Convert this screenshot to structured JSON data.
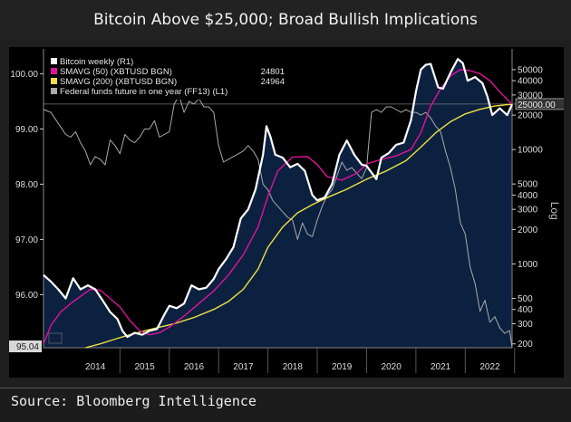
{
  "header": {
    "title": "Bitcoin Above $25,000; Broad Bullish Implications"
  },
  "footer": {
    "source": "Source: Bloomberg Intelligence"
  },
  "chart_data": {
    "type": "line",
    "title": "Bitcoin Above $25,000; Broad Bullish Implications",
    "xlabel": "",
    "x_ticks": [
      "2014",
      "2015",
      "2016",
      "2017",
      "2018",
      "2019",
      "2020",
      "2021",
      "2022"
    ],
    "xlim": [
      2013.45,
      2022.95
    ],
    "left_axis": {
      "label": "",
      "ticks": [
        "100.00",
        "99.00",
        "98.00",
        "97.00",
        "96.00"
      ],
      "tick_values": [
        100,
        99,
        98,
        97,
        96
      ],
      "ylim": [
        95.04,
        100.35
      ],
      "last_value_label": "95.04"
    },
    "right_axis": {
      "label": "Log",
      "scale": "log",
      "ticks": [
        "50000",
        "40000",
        "30000",
        "20000",
        "10000",
        "5000",
        "4000",
        "3000",
        "2000",
        "1000",
        "500",
        "400",
        "300",
        "200"
      ],
      "tick_values": [
        50000,
        40000,
        30000,
        20000,
        10000,
        5000,
        4000,
        3000,
        2000,
        1000,
        500,
        400,
        300,
        200
      ],
      "ylim": [
        185,
        68000
      ],
      "reference_line": 25000,
      "reference_label": "25000.00"
    },
    "legend": {
      "position": "top-left",
      "entries": [
        {
          "label": "Bitcoin weekly (R1)",
          "color": "#ffffff",
          "value": ""
        },
        {
          "label": "SMAVG (50) (XBTUSD BGN)",
          "color": "#e0139a",
          "value": "24801"
        },
        {
          "label": "SMAVG (200) (XBTUSD BGN)",
          "color": "#f0e040",
          "value": "24964"
        },
        {
          "label": "Federal funds future in one year (FF13) (L1)",
          "color": "#aaaaaa",
          "value": ""
        }
      ]
    },
    "series": [
      {
        "name": "Bitcoin weekly (R1)",
        "axis": "right",
        "color": "#ffffff",
        "x": [
          2013.45,
          2013.6,
          2013.75,
          2013.9,
          2014.05,
          2014.2,
          2014.35,
          2014.5,
          2014.65,
          2014.8,
          2014.95,
          2015.05,
          2015.15,
          2015.3,
          2015.45,
          2015.6,
          2015.75,
          2015.9,
          2016.0,
          2016.15,
          2016.3,
          2016.45,
          2016.6,
          2016.75,
          2016.9,
          2017.0,
          2017.15,
          2017.3,
          2017.45,
          2017.6,
          2017.75,
          2017.9,
          2017.97,
          2018.05,
          2018.15,
          2018.3,
          2018.45,
          2018.6,
          2018.75,
          2018.9,
          2019.0,
          2019.15,
          2019.3,
          2019.45,
          2019.6,
          2019.75,
          2019.9,
          2020.0,
          2020.2,
          2020.3,
          2020.45,
          2020.6,
          2020.75,
          2020.9,
          2021.0,
          2021.1,
          2021.2,
          2021.3,
          2021.45,
          2021.55,
          2021.7,
          2021.85,
          2021.95,
          2022.05,
          2022.2,
          2022.35,
          2022.45,
          2022.55,
          2022.7,
          2022.85,
          2022.95
        ],
        "values": [
          800,
          700,
          600,
          500,
          750,
          600,
          650,
          600,
          480,
          380,
          330,
          260,
          230,
          250,
          240,
          260,
          270,
          360,
          430,
          410,
          450,
          650,
          600,
          620,
          740,
          900,
          1100,
          1400,
          2500,
          3000,
          4500,
          9000,
          16000,
          13000,
          9000,
          8500,
          7000,
          7500,
          6500,
          4000,
          3600,
          3800,
          5000,
          9000,
          12000,
          9000,
          7400,
          7200,
          5500,
          8500,
          9300,
          11000,
          11500,
          18000,
          32000,
          50000,
          55000,
          56000,
          35000,
          34000,
          47000,
          62000,
          57000,
          40000,
          43000,
          38000,
          29000,
          20000,
          23000,
          20000,
          24800
        ]
      },
      {
        "name": "SMAVG (50) (XBTUSD BGN)",
        "axis": "right",
        "color": "#e0139a",
        "x": [
          2013.45,
          2013.6,
          2013.8,
          2014.0,
          2014.2,
          2014.4,
          2014.6,
          2014.8,
          2015.0,
          2015.2,
          2015.4,
          2015.6,
          2015.8,
          2016.0,
          2016.3,
          2016.6,
          2016.9,
          2017.2,
          2017.5,
          2017.8,
          2018.0,
          2018.2,
          2018.5,
          2018.8,
          2019.0,
          2019.2,
          2019.5,
          2019.8,
          2020.0,
          2020.3,
          2020.6,
          2020.9,
          2021.1,
          2021.3,
          2021.5,
          2021.7,
          2021.9,
          2022.1,
          2022.3,
          2022.5,
          2022.7,
          2022.95
        ],
        "values": [
          200,
          290,
          380,
          450,
          520,
          600,
          590,
          500,
          420,
          320,
          260,
          240,
          250,
          280,
          350,
          450,
          580,
          800,
          1200,
          2100,
          3900,
          6500,
          8600,
          8700,
          7400,
          5800,
          5400,
          6200,
          7500,
          8200,
          8800,
          10000,
          14000,
          24000,
          34000,
          44000,
          50000,
          49000,
          46000,
          40000,
          32000,
          24800
        ]
      },
      {
        "name": "SMAVG (200) (XBTUSD BGN)",
        "axis": "right",
        "color": "#f0e040",
        "x": [
          2014.3,
          2014.6,
          2014.9,
          2015.2,
          2015.5,
          2015.8,
          2016.1,
          2016.5,
          2016.9,
          2017.2,
          2017.5,
          2017.8,
          2018.0,
          2018.3,
          2018.6,
          2018.9,
          2019.2,
          2019.6,
          2020.0,
          2020.4,
          2020.8,
          2021.1,
          2021.4,
          2021.7,
          2022.0,
          2022.3,
          2022.6,
          2022.95
        ],
        "values": [
          180,
          200,
          220,
          240,
          260,
          280,
          300,
          340,
          400,
          470,
          600,
          900,
          1400,
          2100,
          2800,
          3300,
          3800,
          4500,
          5500,
          6500,
          8000,
          10500,
          14000,
          17500,
          20500,
          22500,
          24000,
          24964
        ]
      },
      {
        "name": "Federal funds future in one year (FF13) (L1)",
        "axis": "left",
        "color": "#aaaaaa",
        "x": [
          2013.45,
          2013.6,
          2013.75,
          2013.9,
          2014.0,
          2014.1,
          2014.2,
          2014.3,
          2014.4,
          2014.5,
          2014.6,
          2014.7,
          2014.8,
          2014.9,
          2015.0,
          2015.1,
          2015.2,
          2015.3,
          2015.4,
          2015.5,
          2015.6,
          2015.7,
          2015.8,
          2015.9,
          2016.0,
          2016.1,
          2016.2,
          2016.3,
          2016.4,
          2016.5,
          2016.6,
          2016.7,
          2016.8,
          2016.9,
          2017.0,
          2017.1,
          2017.2,
          2017.3,
          2017.4,
          2017.5,
          2017.6,
          2017.7,
          2017.8,
          2017.9,
          2018.0,
          2018.1,
          2018.2,
          2018.3,
          2018.4,
          2018.5,
          2018.6,
          2018.7,
          2018.8,
          2018.9,
          2019.0,
          2019.1,
          2019.2,
          2019.3,
          2019.4,
          2019.5,
          2019.6,
          2019.7,
          2019.8,
          2019.9,
          2020.0,
          2020.05,
          2020.1,
          2020.2,
          2020.3,
          2020.4,
          2020.5,
          2020.6,
          2020.7,
          2020.8,
          2020.9,
          2021.0,
          2021.1,
          2021.2,
          2021.3,
          2021.4,
          2021.5,
          2021.6,
          2021.7,
          2021.8,
          2021.9,
          2022.0,
          2022.1,
          2022.2,
          2022.3,
          2022.4,
          2022.5,
          2022.6,
          2022.7,
          2022.8,
          2022.9,
          2022.95
        ],
        "values": [
          99.35,
          99.3,
          99.1,
          98.9,
          98.85,
          98.95,
          98.75,
          98.6,
          98.35,
          98.5,
          98.45,
          98.35,
          98.8,
          98.7,
          98.55,
          98.9,
          98.8,
          98.75,
          98.85,
          99.0,
          99.0,
          99.15,
          98.85,
          98.9,
          98.95,
          99.45,
          99.6,
          99.3,
          99.5,
          99.45,
          99.55,
          99.4,
          99.4,
          99.3,
          98.7,
          98.4,
          98.45,
          98.5,
          98.55,
          98.6,
          98.7,
          98.6,
          98.45,
          98.0,
          97.9,
          97.7,
          97.6,
          97.5,
          97.4,
          97.35,
          97.0,
          97.3,
          97.1,
          97.05,
          97.35,
          97.6,
          97.8,
          97.9,
          98.15,
          98.4,
          98.25,
          98.3,
          98.2,
          98.1,
          98.3,
          98.8,
          99.3,
          99.35,
          99.3,
          99.4,
          99.4,
          99.35,
          99.3,
          99.35,
          99.3,
          99.3,
          99.25,
          99.3,
          99.2,
          99.05,
          98.95,
          98.6,
          98.3,
          97.9,
          97.3,
          97.1,
          96.5,
          96.2,
          95.7,
          95.9,
          95.5,
          95.6,
          95.4,
          95.3,
          95.35,
          95.04
        ]
      }
    ]
  }
}
